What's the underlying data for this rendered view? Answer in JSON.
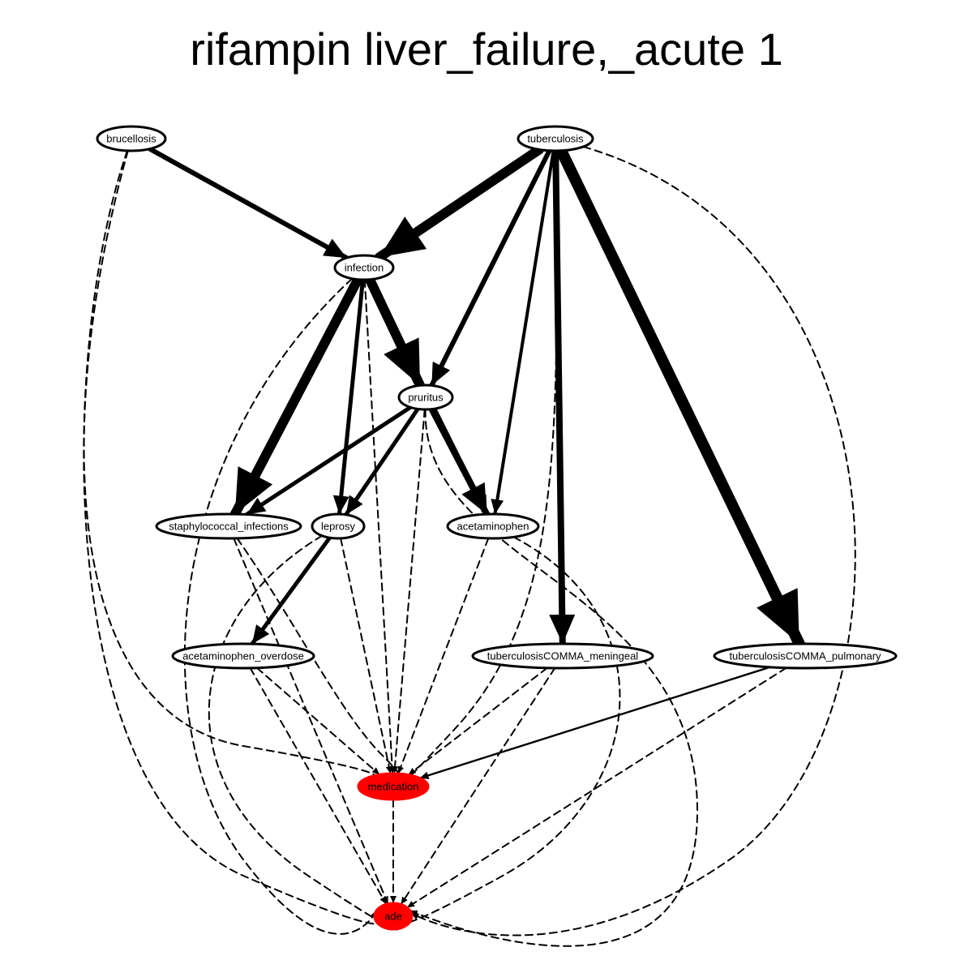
{
  "title": "rifampin liver_failure,_acute 1",
  "colors": {
    "highlight": "#ff0000",
    "stroke": "#000000",
    "background": "#ffffff"
  },
  "nodes": [
    {
      "id": "brucellosis",
      "label": "brucellosis",
      "fill": "#ffffff"
    },
    {
      "id": "tuberculosis",
      "label": "tuberculosis",
      "fill": "#ffffff"
    },
    {
      "id": "infection",
      "label": "infection",
      "fill": "#ffffff"
    },
    {
      "id": "pruritus",
      "label": "pruritus",
      "fill": "#ffffff"
    },
    {
      "id": "staphylococcal_infections",
      "label": "staphylococcal_infections",
      "fill": "#ffffff"
    },
    {
      "id": "leprosy",
      "label": "leprosy",
      "fill": "#ffffff"
    },
    {
      "id": "acetaminophen",
      "label": "acetaminophen",
      "fill": "#ffffff"
    },
    {
      "id": "acetaminophen_overdose",
      "label": "acetaminophen_overdose",
      "fill": "#ffffff"
    },
    {
      "id": "tuberculosisCOMMA_meningeal",
      "label": "tuberculosisCOMMA_meningeal",
      "fill": "#ffffff"
    },
    {
      "id": "tuberculosisCOMMA_pulmonary",
      "label": "tuberculosisCOMMA_pulmonary",
      "fill": "#ffffff"
    },
    {
      "id": "medication",
      "label": "medication",
      "fill": "#ff0000"
    },
    {
      "id": "ade",
      "label": "ade",
      "fill": "#ff0000"
    }
  ],
  "edges": [
    {
      "from": "brucellosis",
      "to": "infection",
      "style": "solid",
      "weight": 3
    },
    {
      "from": "tuberculosis",
      "to": "infection",
      "style": "solid",
      "weight": 6
    },
    {
      "from": "tuberculosis",
      "to": "pruritus",
      "style": "solid",
      "weight": 3
    },
    {
      "from": "tuberculosis",
      "to": "acetaminophen",
      "style": "solid",
      "weight": 2
    },
    {
      "from": "tuberculosis",
      "to": "tuberculosisCOMMA_meningeal",
      "style": "solid",
      "weight": 4
    },
    {
      "from": "tuberculosis",
      "to": "tuberculosisCOMMA_pulmonary",
      "style": "solid",
      "weight": 7
    },
    {
      "from": "infection",
      "to": "pruritus",
      "style": "solid",
      "weight": 6
    },
    {
      "from": "infection",
      "to": "staphylococcal_infections",
      "style": "solid",
      "weight": 6
    },
    {
      "from": "infection",
      "to": "leprosy",
      "style": "solid",
      "weight": 2.5
    },
    {
      "from": "infection",
      "to": "acetaminophen",
      "style": "solid",
      "weight": 2.5
    },
    {
      "from": "pruritus",
      "to": "staphylococcal_infections",
      "style": "solid",
      "weight": 2.5
    },
    {
      "from": "pruritus",
      "to": "leprosy",
      "style": "solid",
      "weight": 2.5
    },
    {
      "from": "pruritus",
      "to": "acetaminophen",
      "style": "solid",
      "weight": 4
    },
    {
      "from": "leprosy",
      "to": "acetaminophen_overdose",
      "style": "solid",
      "weight": 2.5
    },
    {
      "from": "brucellosis",
      "to": "medication",
      "style": "dashed",
      "weight": 1
    },
    {
      "from": "brucellosis",
      "to": "ade",
      "style": "dashed",
      "weight": 1
    },
    {
      "from": "tuberculosis",
      "to": "medication",
      "style": "dashed",
      "weight": 1
    },
    {
      "from": "tuberculosis",
      "to": "ade",
      "style": "dashed",
      "weight": 1
    },
    {
      "from": "infection",
      "to": "medication",
      "style": "dashed",
      "weight": 1
    },
    {
      "from": "infection",
      "to": "ade",
      "style": "dashed",
      "weight": 1
    },
    {
      "from": "pruritus",
      "to": "medication",
      "style": "dashed",
      "weight": 1
    },
    {
      "from": "pruritus",
      "to": "ade",
      "style": "dashed",
      "weight": 1
    },
    {
      "from": "staphylococcal_infections",
      "to": "medication",
      "style": "dashed",
      "weight": 1
    },
    {
      "from": "staphylococcal_infections",
      "to": "ade",
      "style": "dashed",
      "weight": 1
    },
    {
      "from": "leprosy",
      "to": "medication",
      "style": "dashed",
      "weight": 1
    },
    {
      "from": "leprosy",
      "to": "ade",
      "style": "dashed",
      "weight": 1
    },
    {
      "from": "acetaminophen",
      "to": "medication",
      "style": "dashed",
      "weight": 1
    },
    {
      "from": "acetaminophen",
      "to": "ade",
      "style": "dashed",
      "weight": 1
    },
    {
      "from": "acetaminophen_overdose",
      "to": "medication",
      "style": "dashed",
      "weight": 1
    },
    {
      "from": "acetaminophen_overdose",
      "to": "ade",
      "style": "dashed",
      "weight": 1
    },
    {
      "from": "tuberculosisCOMMA_meningeal",
      "to": "medication",
      "style": "dashed",
      "weight": 1
    },
    {
      "from": "tuberculosisCOMMA_meningeal",
      "to": "ade",
      "style": "dashed",
      "weight": 1
    },
    {
      "from": "tuberculosisCOMMA_pulmonary",
      "to": "medication",
      "style": "solid",
      "weight": 1.2
    },
    {
      "from": "tuberculosisCOMMA_pulmonary",
      "to": "ade",
      "style": "dashed",
      "weight": 1
    },
    {
      "from": "medication",
      "to": "ade",
      "style": "dashed",
      "weight": 1
    }
  ]
}
